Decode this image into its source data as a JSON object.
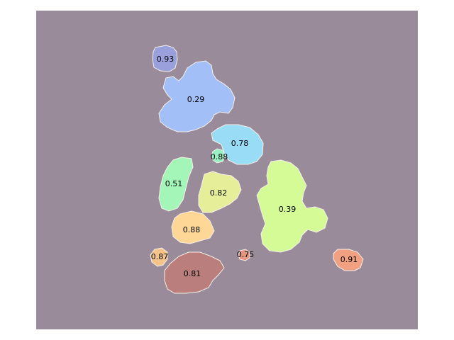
{
  "canvas": {
    "background": "#9a8b9b"
  },
  "segments": [
    {
      "id": "seg-093",
      "label": "0.93",
      "fill": "#9aa0dc"
    },
    {
      "id": "seg-029",
      "label": "0.29",
      "fill": "#a2bff8"
    },
    {
      "id": "seg-078",
      "label": "0.78",
      "fill": "#98dcf6"
    },
    {
      "id": "seg-088a",
      "label": "0.88",
      "fill": "#98f0c4"
    },
    {
      "id": "seg-051",
      "label": "0.51",
      "fill": "#a4f6b8"
    },
    {
      "id": "seg-082",
      "label": "0.82",
      "fill": "#e6ee9a"
    },
    {
      "id": "seg-039",
      "label": "0.39",
      "fill": "#d4fb96"
    },
    {
      "id": "seg-088b",
      "label": "0.88",
      "fill": "#fed796"
    },
    {
      "id": "seg-087",
      "label": "0.87",
      "fill": "#f6c48a"
    },
    {
      "id": "seg-075",
      "label": "0.75",
      "fill": "#e6967e"
    },
    {
      "id": "seg-081",
      "label": "0.81",
      "fill": "#ba7e7c"
    },
    {
      "id": "seg-091",
      "label": "0.91",
      "fill": "#f1a182"
    }
  ]
}
